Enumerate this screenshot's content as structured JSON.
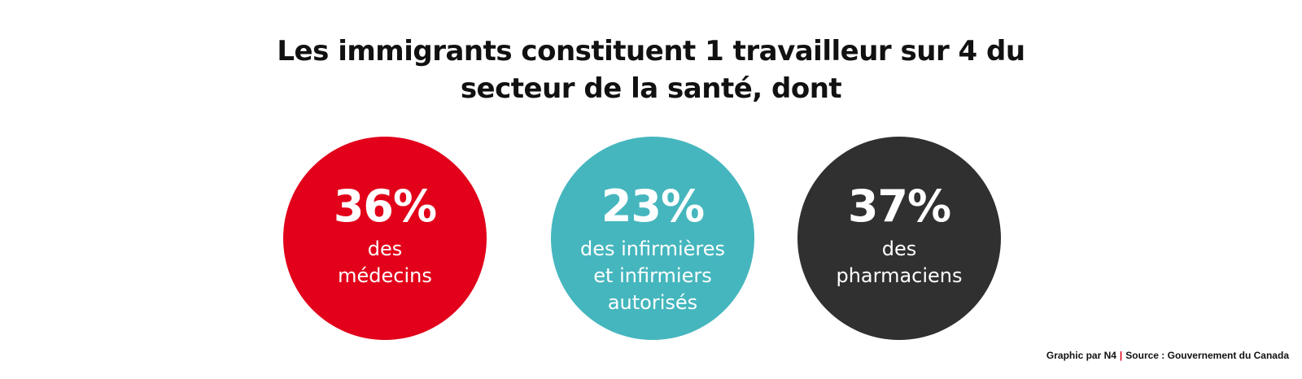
{
  "chart_data": {
    "type": "bubble-stats",
    "title_lines": [
      "Les immigrants constituent 1 travailleur sur 4 du",
      "secteur de la santé, dont"
    ],
    "items": [
      {
        "value_label": "36%",
        "value": 36,
        "label_lines": [
          "des",
          "médecins"
        ],
        "color": "#e2001a"
      },
      {
        "value_label": "23%",
        "value": 23,
        "label_lines": [
          "des infirmières",
          "et infirmiers",
          "autorisés"
        ],
        "color": "#45b6be"
      },
      {
        "value_label": "37%",
        "value": 37,
        "label_lines": [
          "des",
          "pharmaciens"
        ],
        "color": "#303030"
      }
    ]
  },
  "footer": {
    "credit": "Graphic par N4",
    "separator": "|",
    "source": "Source : Gouvernement du Canada"
  },
  "colors": {
    "accent_red": "#e2001a",
    "teal": "#45b6be",
    "dark": "#303030"
  }
}
